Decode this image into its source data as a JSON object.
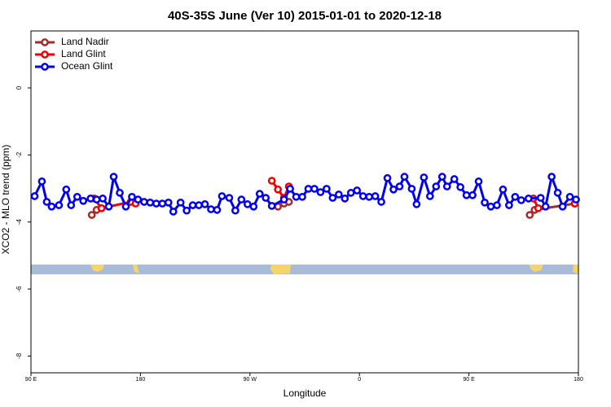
{
  "chart_data": {
    "type": "line",
    "title": "40S-35S June (Ver 10)   2015-01-01 to 2020-12-18",
    "x_label": "Longitude",
    "y_label": "XCO2 - MLO trend (ppm)",
    "xlim": [
      90,
      540
    ],
    "ylim": [
      -8.5,
      1.7
    ],
    "xticks": [
      {
        "value": 90,
        "label": "90 E"
      },
      180,
      {
        "value": 270,
        "label": "90 W"
      },
      {
        "value": 360,
        "label": "0"
      },
      {
        "value": 450,
        "label": "90 E"
      },
      {
        "value": 540,
        "label": "180"
      }
    ],
    "yticks": [
      0,
      -2,
      -4,
      -6,
      -8
    ],
    "legend": "top-left",
    "series": [
      {
        "name": "Land Nadir",
        "color": "#a52a2a",
        "x": [
          140,
          144,
          148,
          220,
          293,
          298,
          302,
          400,
          500,
          504,
          537
        ],
        "values": [
          -3.79,
          -3.64,
          -3.59,
          null,
          -3.54,
          -3.45,
          -3.4,
          null,
          -3.79,
          -3.64,
          -3.45
        ]
      },
      {
        "name": "Land Glint",
        "color": "#ee0000",
        "x": [
          142,
          148,
          172,
          176,
          220,
          288,
          293,
          298,
          302,
          400,
          503,
          507,
          520,
          537
        ],
        "values": [
          -3.3,
          -3.59,
          -3.4,
          -3.45,
          null,
          -2.77,
          -3.03,
          -3.28,
          -2.94,
          null,
          -3.3,
          -3.59,
          null,
          -3.45
        ]
      },
      {
        "name": "Ocean Glint",
        "color": "#0000ee",
        "x": [
          93,
          99,
          103,
          107,
          113,
          119,
          123,
          128,
          133,
          139,
          144,
          149,
          154,
          158,
          163,
          168,
          173,
          178,
          183,
          188,
          193,
          198,
          203,
          207,
          213,
          218,
          223,
          228,
          233,
          238,
          243,
          247,
          253,
          258,
          263,
          268,
          273,
          278,
          283,
          288,
          298,
          303,
          308,
          313,
          318,
          323,
          328,
          333,
          338,
          343,
          348,
          353,
          358,
          363,
          368,
          373,
          378,
          383,
          388,
          393,
          397,
          403,
          407,
          413,
          418,
          423,
          428,
          432,
          438,
          443,
          448,
          453,
          458,
          463,
          468,
          473,
          478,
          483,
          488,
          493,
          499,
          509,
          513,
          518,
          523,
          527,
          533,
          538
        ],
        "values": [
          -3.23,
          -2.79,
          -3.4,
          -3.54,
          -3.5,
          -3.03,
          -3.5,
          -3.25,
          -3.37,
          -3.3,
          -3.33,
          -3.3,
          -3.54,
          -2.65,
          -3.13,
          -3.54,
          -3.25,
          -3.33,
          -3.4,
          -3.42,
          -3.45,
          -3.45,
          -3.42,
          -3.69,
          -3.42,
          -3.66,
          -3.5,
          -3.5,
          -3.47,
          -3.62,
          -3.64,
          -3.23,
          -3.28,
          -3.66,
          -3.33,
          -3.47,
          -3.54,
          -3.16,
          -3.28,
          -3.52,
          -3.33,
          -3.01,
          -3.25,
          -3.25,
          -3.01,
          -3.01,
          -3.11,
          -3.01,
          -3.28,
          -3.18,
          -3.3,
          -3.13,
          -3.06,
          -3.23,
          -3.25,
          -3.23,
          -3.4,
          -2.69,
          -3.03,
          -2.94,
          -2.65,
          -3.01,
          -3.47,
          -2.67,
          -3.23,
          -2.94,
          -2.65,
          -2.94,
          -2.72,
          -2.96,
          -3.2,
          -3.2,
          -2.79,
          -3.42,
          -3.54,
          -3.5,
          -3.03,
          -3.5,
          -3.25,
          -3.35,
          -3.3,
          -3.28,
          -3.54,
          -2.65,
          -3.13,
          -3.54,
          -3.25,
          -3.33
        ]
      }
    ]
  }
}
